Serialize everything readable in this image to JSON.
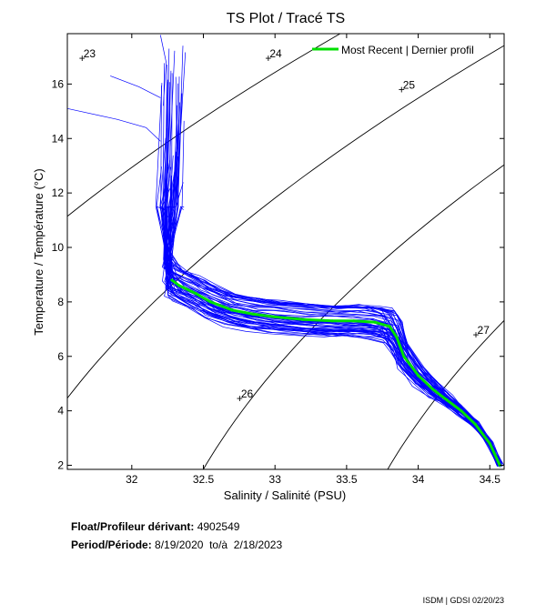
{
  "chart_data": {
    "type": "line",
    "title": "TS Plot / Tracé TS",
    "xlabel": "Salinity / Salinité (PSU)",
    "ylabel": "Temperature / Température (°C)",
    "xlim": [
      31.55,
      34.6
    ],
    "ylim": [
      1.85,
      17.85
    ],
    "x_ticks": [
      32,
      32.5,
      33,
      33.5,
      34,
      34.5
    ],
    "x_tick_labels": [
      "32",
      "32.5",
      "33",
      "33.5",
      "34",
      "34.5"
    ],
    "y_ticks": [
      2,
      4,
      6,
      8,
      10,
      12,
      14,
      16
    ],
    "y_tick_labels": [
      "2",
      "4",
      "6",
      "8",
      "10",
      "12",
      "14",
      "16"
    ],
    "legend": {
      "placement": "top-right",
      "entries": [
        "Most Recent | Dernier profil"
      ]
    },
    "colors": {
      "history": "#0000ff",
      "most_recent": "#00e000",
      "isopycnal": "#000000"
    },
    "isopycnals": [
      {
        "label": "23",
        "sigma": 23,
        "label_at": [
          31.65,
          16.95
        ]
      },
      {
        "label": "24",
        "sigma": 24,
        "label_at": [
          32.95,
          16.95
        ]
      },
      {
        "label": "25",
        "sigma": 25,
        "label_at": [
          33.88,
          15.8
        ]
      },
      {
        "label": "26",
        "sigma": 26,
        "label_at": [
          32.75,
          4.45
        ]
      },
      {
        "label": "27",
        "sigma": 27,
        "label_at": [
          34.4,
          6.8
        ]
      }
    ],
    "series": [
      {
        "name": "Most Recent | Dernier profil",
        "x": [
          32.28,
          32.33,
          32.45,
          32.55,
          32.7,
          32.85,
          33.0,
          33.2,
          33.4,
          33.55,
          33.7,
          33.8,
          33.85,
          33.9,
          34.0,
          34.1,
          34.2,
          34.3,
          34.4,
          34.5,
          34.57
        ],
        "y": [
          8.8,
          8.6,
          8.3,
          8.0,
          7.7,
          7.55,
          7.45,
          7.35,
          7.3,
          7.3,
          7.25,
          7.1,
          6.7,
          6.0,
          5.3,
          4.8,
          4.4,
          4.0,
          3.5,
          2.8,
          2.0
        ]
      }
    ]
  },
  "info": {
    "float_label": "Float/Profileur dérivant:",
    "float_value": "4902549",
    "period_label": "Period/Période:",
    "period_value": "8/19/2020  to/à  2/18/2023"
  },
  "footer": "ISDM | GDSI  02/20/23"
}
